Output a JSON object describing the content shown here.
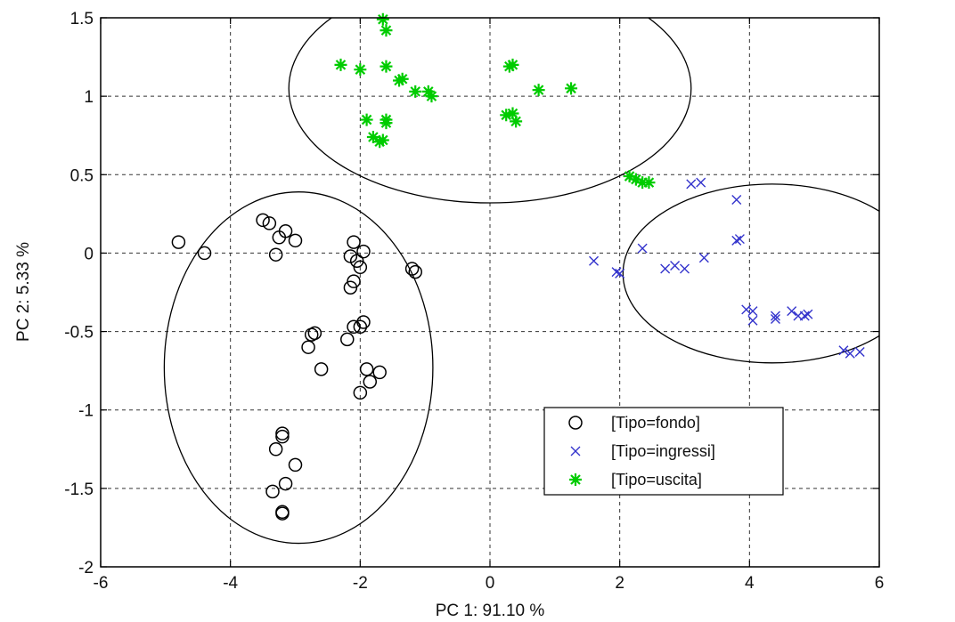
{
  "chart_data": {
    "type": "scatter",
    "title": "",
    "xlabel": "PC 1: 91.10 %",
    "ylabel": "PC 2: 5.33 %",
    "xlim": [
      -6,
      6
    ],
    "ylim": [
      -2,
      1.5
    ],
    "xticks": [
      -6,
      -4,
      -2,
      0,
      2,
      4,
      6
    ],
    "yticks": [
      -2,
      -1.5,
      -1,
      -0.5,
      0,
      0.5,
      1,
      1.5
    ],
    "xtick_labels": [
      "-6",
      "-4",
      "-2",
      "0",
      "2",
      "4",
      "6"
    ],
    "ytick_labels": [
      "-2",
      "-1.5",
      "-1",
      "-0.5",
      "0",
      "0.5",
      "1",
      "1.5"
    ],
    "grid": true,
    "legend_position": "lower-right",
    "series": [
      {
        "name": "[Tipo=fondo]",
        "marker": "circle",
        "color": "#000000",
        "points": [
          [
            -4.8,
            0.07
          ],
          [
            -4.4,
            0.0
          ],
          [
            -3.5,
            0.21
          ],
          [
            -3.4,
            0.19
          ],
          [
            -3.3,
            -0.01
          ],
          [
            -3.25,
            0.1
          ],
          [
            -3.15,
            0.14
          ],
          [
            -3.0,
            0.08
          ],
          [
            -2.1,
            0.07
          ],
          [
            -2.15,
            -0.02
          ],
          [
            -2.05,
            -0.05
          ],
          [
            -1.95,
            0.01
          ],
          [
            -2.0,
            -0.09
          ],
          [
            -2.1,
            -0.18
          ],
          [
            -2.15,
            -0.22
          ],
          [
            -1.2,
            -0.1
          ],
          [
            -1.15,
            -0.12
          ],
          [
            -2.7,
            -0.51
          ],
          [
            -2.75,
            -0.52
          ],
          [
            -2.8,
            -0.6
          ],
          [
            -2.6,
            -0.74
          ],
          [
            -2.2,
            -0.55
          ],
          [
            -2.1,
            -0.47
          ],
          [
            -2.0,
            -0.47
          ],
          [
            -1.95,
            -0.44
          ],
          [
            -1.9,
            -0.74
          ],
          [
            -1.85,
            -0.82
          ],
          [
            -1.7,
            -0.76
          ],
          [
            -2.0,
            -0.89
          ],
          [
            -3.2,
            -1.15
          ],
          [
            -3.2,
            -1.17
          ],
          [
            -3.3,
            -1.25
          ],
          [
            -3.0,
            -1.35
          ],
          [
            -3.15,
            -1.47
          ],
          [
            -3.35,
            -1.52
          ],
          [
            -3.2,
            -1.65
          ],
          [
            -3.2,
            -1.66
          ]
        ]
      },
      {
        "name": "[Tipo=ingressi]",
        "marker": "x",
        "color": "#3333cc",
        "points": [
          [
            1.6,
            -0.05
          ],
          [
            1.95,
            -0.12
          ],
          [
            2.0,
            -0.13
          ],
          [
            2.35,
            0.03
          ],
          [
            2.7,
            -0.1
          ],
          [
            2.85,
            -0.08
          ],
          [
            3.0,
            -0.1
          ],
          [
            3.1,
            0.44
          ],
          [
            3.25,
            0.45
          ],
          [
            3.3,
            -0.03
          ],
          [
            3.8,
            0.34
          ],
          [
            3.8,
            0.08
          ],
          [
            3.85,
            0.09
          ],
          [
            3.95,
            -0.36
          ],
          [
            4.05,
            -0.43
          ],
          [
            4.05,
            -0.37
          ],
          [
            4.4,
            -0.42
          ],
          [
            4.4,
            -0.4
          ],
          [
            4.65,
            -0.37
          ],
          [
            4.75,
            -0.4
          ],
          [
            4.85,
            -0.4
          ],
          [
            4.9,
            -0.39
          ],
          [
            5.45,
            -0.62
          ],
          [
            5.55,
            -0.64
          ],
          [
            5.7,
            -0.63
          ]
        ]
      },
      {
        "name": "[Tipo=uscita]",
        "marker": "star",
        "color": "#00cc00",
        "points": [
          [
            -1.65,
            1.49
          ],
          [
            -1.6,
            1.42
          ],
          [
            -2.3,
            1.2
          ],
          [
            -2.0,
            1.17
          ],
          [
            -1.6,
            1.19
          ],
          [
            -1.4,
            1.1
          ],
          [
            -1.35,
            1.11
          ],
          [
            -1.15,
            1.03
          ],
          [
            -0.95,
            1.03
          ],
          [
            -0.9,
            1.0
          ],
          [
            -1.9,
            0.85
          ],
          [
            -1.6,
            0.85
          ],
          [
            -1.6,
            0.83
          ],
          [
            -1.8,
            0.74
          ],
          [
            -1.7,
            0.71
          ],
          [
            -1.65,
            0.72
          ],
          [
            0.3,
            1.19
          ],
          [
            0.35,
            1.2
          ],
          [
            0.75,
            1.04
          ],
          [
            1.25,
            1.05
          ],
          [
            0.25,
            0.88
          ],
          [
            0.35,
            0.89
          ],
          [
            0.4,
            0.84
          ],
          [
            2.15,
            0.49
          ],
          [
            2.25,
            0.47
          ],
          [
            2.35,
            0.45
          ],
          [
            2.45,
            0.45
          ]
        ]
      }
    ],
    "ellipses": [
      {
        "cx": 0.0,
        "cy": 1.05,
        "rx": 3.1,
        "ry": 0.73
      },
      {
        "cx": -2.95,
        "cy": -0.73,
        "rx": 2.07,
        "ry": 1.12
      },
      {
        "cx": 4.35,
        "cy": -0.13,
        "rx": 2.3,
        "ry": 0.57
      }
    ]
  }
}
